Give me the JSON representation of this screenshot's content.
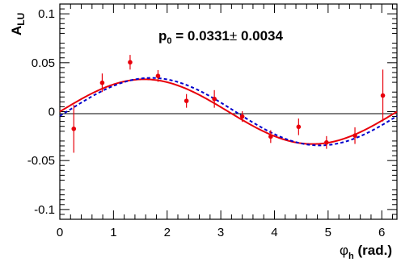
{
  "chart_data": {
    "type": "scatter",
    "title": "",
    "annotation": {
      "prefix": "p",
      "subscript": "0",
      "text": " = 0.0331",
      "pm": "±",
      "error": " 0.0034"
    },
    "ylabel": {
      "main": "A",
      "subscript": "LU"
    },
    "xlabel": {
      "main": "φ",
      "subscript": "h",
      "suffix": " (rad.)"
    },
    "xlim": [
      0,
      6.283
    ],
    "ylim": [
      -0.11,
      0.11
    ],
    "x_ticks": [
      0,
      1,
      2,
      3,
      4,
      5,
      6
    ],
    "x_tick_labels": [
      "0",
      "1",
      "2",
      "3",
      "4",
      "5",
      "6"
    ],
    "y_ticks": [
      -0.1,
      -0.05,
      0,
      0.05,
      0.1
    ],
    "y_tick_labels": [
      "-0.1",
      "-0.05",
      "0",
      "0.05",
      "0.1"
    ],
    "grid": false,
    "colors": {
      "points": "#e8000b",
      "fit_solid": "#e8000b",
      "fit_dashed": "#0000cc",
      "axis": "#000000"
    },
    "points": [
      {
        "x": 0.26,
        "y": -0.0175,
        "err": 0.0245
      },
      {
        "x": 0.79,
        "y": 0.0295,
        "err": 0.0095
      },
      {
        "x": 1.31,
        "y": 0.0505,
        "err": 0.0075
      },
      {
        "x": 1.83,
        "y": 0.0365,
        "err": 0.006
      },
      {
        "x": 2.36,
        "y": 0.011,
        "err": 0.007
      },
      {
        "x": 2.88,
        "y": 0.013,
        "err": 0.009
      },
      {
        "x": 3.4,
        "y": -0.005,
        "err": 0.0055
      },
      {
        "x": 3.93,
        "y": -0.0255,
        "err": 0.0065
      },
      {
        "x": 4.45,
        "y": -0.0155,
        "err": 0.0085
      },
      {
        "x": 4.97,
        "y": -0.0315,
        "err": 0.0065
      },
      {
        "x": 5.5,
        "y": -0.0245,
        "err": 0.0085
      },
      {
        "x": 6.02,
        "y": 0.0165,
        "err": 0.0265
      }
    ],
    "series": [
      {
        "style": "solid",
        "amplitude": 0.0331,
        "phase_shift": 0.0
      },
      {
        "style": "dashed",
        "amplitude": 0.0345,
        "phase_shift": -0.13
      }
    ]
  }
}
